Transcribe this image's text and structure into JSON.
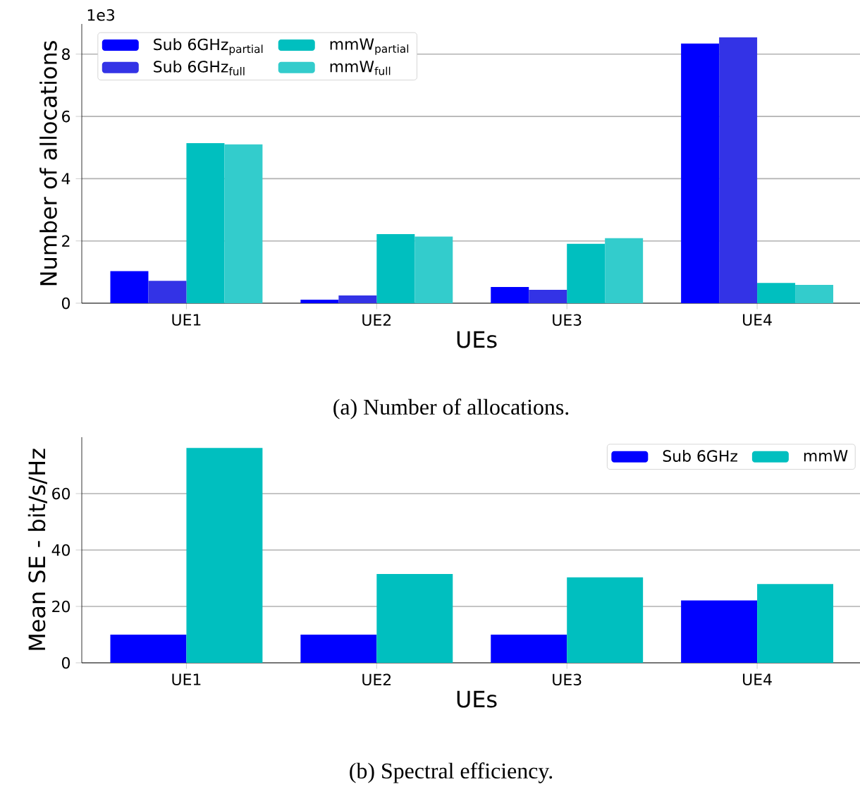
{
  "chart_data": [
    {
      "type": "bar",
      "categories": [
        "UE1",
        "UE2",
        "UE3",
        "UE4"
      ],
      "xlabel": "UEs",
      "ylabel": "Number of allocations",
      "ylim": [
        0,
        8.97
      ],
      "yticks": [
        0,
        2,
        4,
        6,
        8
      ],
      "grid": "y",
      "legend": "top left",
      "annotations": [
        "1e3",
        "(a) Number of allocations."
      ],
      "series": [
        {
          "name": "Sub 6GHz$_{partial}$",
          "color": "#0000ff",
          "values": [
            1.03,
            0.11,
            0.52,
            8.34
          ]
        },
        {
          "name": "Sub 6GHz$_{full}$",
          "color": "#3333e6",
          "values": [
            0.72,
            0.25,
            0.43,
            8.54
          ]
        },
        {
          "name": "mmW$_{partial}$",
          "color": "#00bfbf",
          "values": [
            5.14,
            2.22,
            1.91,
            0.65
          ]
        },
        {
          "name": "mmW$_{full}$",
          "color": "#33cccc",
          "values": [
            5.1,
            2.14,
            2.09,
            0.59
          ]
        }
      ]
    },
    {
      "type": "bar",
      "categories": [
        "UE1",
        "UE2",
        "UE3",
        "UE4"
      ],
      "xlabel": "UEs",
      "ylabel": "Mean SE - bit/s/Hz",
      "ylim": [
        0,
        80
      ],
      "yticks": [
        0,
        20,
        40,
        60
      ],
      "grid": "y",
      "legend": "top right",
      "annotations": [
        "(b) Spectral efficiency."
      ],
      "series": [
        {
          "name": "Sub 6GHz",
          "color": "#0000ff",
          "values": [
            10,
            10,
            10,
            22.1
          ]
        },
        {
          "name": "mmW",
          "color": "#00bfbf",
          "values": [
            76.2,
            31.5,
            30.3,
            27.9
          ]
        }
      ]
    }
  ]
}
